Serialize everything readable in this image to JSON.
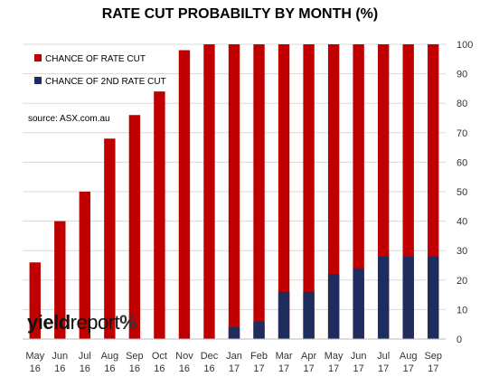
{
  "chart_data": {
    "type": "bar",
    "title": "RATE CUT PROBABILTY BY MONTH  (%)",
    "categories": [
      [
        "May",
        "16"
      ],
      [
        "Jun",
        "16"
      ],
      [
        "Jul",
        "16"
      ],
      [
        "Aug",
        "16"
      ],
      [
        "Sep",
        "16"
      ],
      [
        "Oct",
        "16"
      ],
      [
        "Nov",
        "16"
      ],
      [
        "Dec",
        "16"
      ],
      [
        "Jan",
        "17"
      ],
      [
        "Feb",
        "17"
      ],
      [
        "Mar",
        "17"
      ],
      [
        "Apr",
        "17"
      ],
      [
        "May",
        "17"
      ],
      [
        "Jun",
        "17"
      ],
      [
        "Jul",
        "17"
      ],
      [
        "Aug",
        "17"
      ],
      [
        "Sep",
        "17"
      ]
    ],
    "series": [
      {
        "name": "CHANCE OF RATE CUT",
        "color": "#c00000",
        "values": [
          26,
          40,
          50,
          68,
          76,
          84,
          98,
          100,
          100,
          100,
          100,
          100,
          100,
          100,
          100,
          100,
          100
        ]
      },
      {
        "name": "CHANCE OF 2ND RATE CUT",
        "color": "#1f2d5e",
        "values": [
          0,
          0,
          0,
          0,
          0,
          0,
          0,
          0,
          4,
          6,
          16,
          16,
          22,
          24,
          28,
          28,
          28
        ]
      }
    ],
    "yticks": [
      0,
      10,
      20,
      30,
      40,
      50,
      60,
      70,
      80,
      90,
      100
    ],
    "ylim": [
      0,
      100
    ],
    "y_axis_side": "right",
    "grid": true,
    "legend_position": "top-left"
  },
  "source": "source: ASX.com.au",
  "logo": {
    "part1": "yield",
    "part2": "report",
    "part3": "%"
  }
}
